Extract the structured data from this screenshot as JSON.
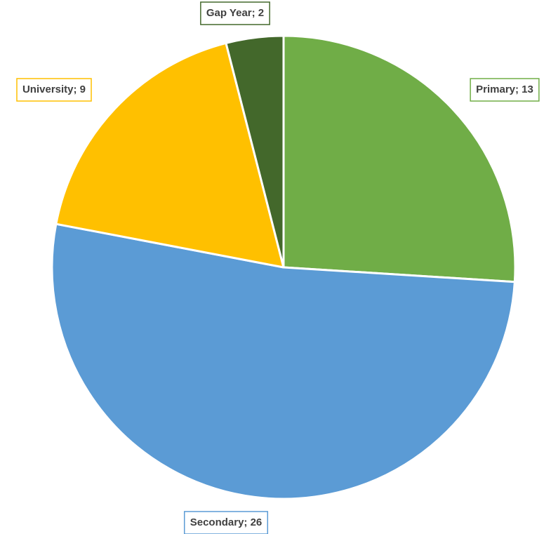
{
  "chart_data": {
    "type": "pie",
    "categories": [
      "Primary",
      "Secondary",
      "University",
      "Gap Year"
    ],
    "values": [
      13,
      26,
      9,
      2
    ],
    "value_labels": [
      "Primary; 13",
      "Secondary; 26",
      "University; 9",
      "Gap Year; 2"
    ],
    "colors": [
      "#70ad47",
      "#5b9bd5",
      "#ffc000",
      "#43682b"
    ]
  }
}
